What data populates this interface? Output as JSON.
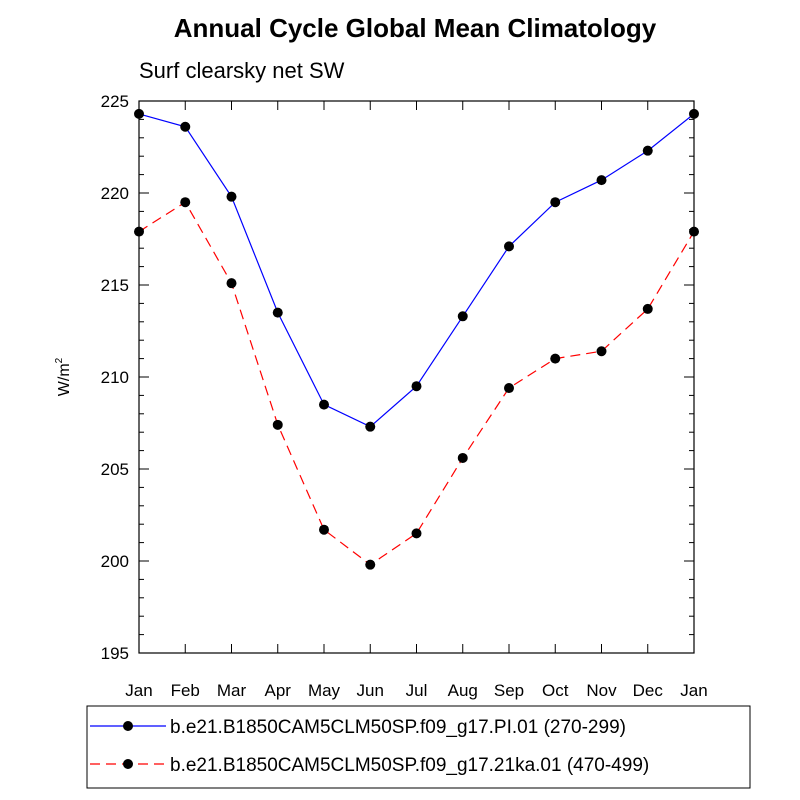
{
  "chart_data": {
    "type": "line",
    "title": "Annual Cycle Global Mean Climatology",
    "subtitle": "Surf clearsky net SW",
    "xlabel": "",
    "ylabel": "W/m",
    "ylabel_superscript": "2",
    "categories": [
      "Jan",
      "Feb",
      "Mar",
      "Apr",
      "May",
      "Jun",
      "Jul",
      "Aug",
      "Sep",
      "Oct",
      "Nov",
      "Dec",
      "Jan"
    ],
    "ylim": [
      195,
      225
    ],
    "yticks": [
      195,
      200,
      205,
      210,
      215,
      220,
      225
    ],
    "grid": false,
    "legend_position": "bottom",
    "series": [
      {
        "name": "b.e21.B1850CAM5CLM50SP.f09_g17.PI.01 (270-299)",
        "color": "#0000ff",
        "dash": "solid",
        "values": [
          224.3,
          223.6,
          219.8,
          213.5,
          208.5,
          207.3,
          209.5,
          213.3,
          217.1,
          219.5,
          220.7,
          222.3,
          224.3
        ]
      },
      {
        "name": "b.e21.B1850CAM5CLM50SP.f09_g17.21ka.01 (470-499)",
        "color": "#ff0000",
        "dash": "dashed",
        "values": [
          217.9,
          219.5,
          215.1,
          207.4,
          201.7,
          199.8,
          201.5,
          205.6,
          209.4,
          211.0,
          211.4,
          213.7,
          217.9
        ]
      }
    ]
  }
}
